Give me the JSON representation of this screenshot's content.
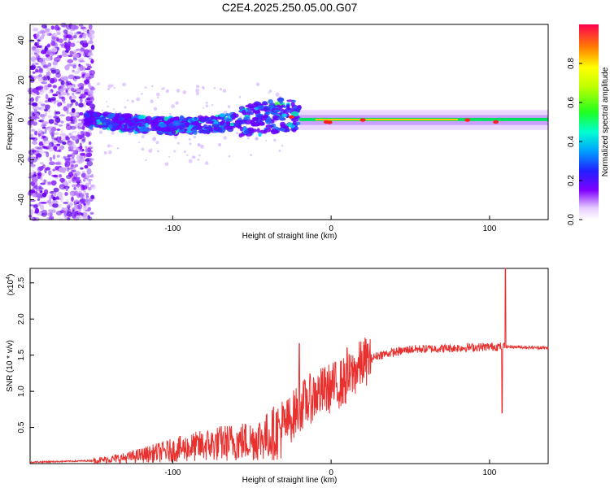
{
  "title": "C2E4.2025.250.05.00.G07",
  "chart_data": [
    {
      "type": "heatmap",
      "xlabel": "Height of straight line (km)",
      "ylabel": "Frequency (Hz)",
      "xlim": [
        -190,
        137
      ],
      "ylim": [
        -50,
        48
      ],
      "xticks": [
        -100,
        0,
        100
      ],
      "yticks": [
        -40,
        -20,
        0,
        20,
        40
      ],
      "ridge": [
        {
          "x": -150,
          "f": 0
        },
        {
          "x": -120,
          "f": -2
        },
        {
          "x": -100,
          "f": -3
        },
        {
          "x": -80,
          "f": -2
        },
        {
          "x": -60,
          "f": -1
        },
        {
          "x": -40,
          "f": 1
        },
        {
          "x": -30,
          "f": 3
        },
        {
          "x": -20,
          "f": 1
        },
        {
          "x": 0,
          "f": -1
        },
        {
          "x": 50,
          "f": 0
        },
        {
          "x": 100,
          "f": 0
        },
        {
          "x": 137,
          "f": 0
        }
      ],
      "colorbar": {
        "label": "Normalized spectral amplitude",
        "range": [
          0,
          1
        ],
        "ticks": [
          "0.0",
          "0.2",
          "0.4",
          "0.6",
          "0.8"
        ],
        "tick_values": [
          0,
          0.2,
          0.4,
          0.6,
          0.8
        ]
      }
    },
    {
      "type": "line",
      "xlabel": "Height of straight line (km)",
      "ylabel": "SNR (10 * v/v)",
      "y_multiplier": "(x10",
      "y_multiplier_exp": "4",
      "y_multiplier_close": ")",
      "xlim": [
        -190,
        137
      ],
      "ylim": [
        0,
        2.7
      ],
      "xticks": [
        -100,
        0,
        100
      ],
      "yticks": [
        "0.5",
        "1.0",
        "1.5",
        "2.0",
        "2.5"
      ],
      "ytick_values": [
        0.5,
        1.0,
        1.5,
        2.0,
        2.5
      ],
      "series_color": "#e8312f",
      "trend": [
        [
          -190,
          0.02
        ],
        [
          -150,
          0.04
        ],
        [
          -130,
          0.08
        ],
        [
          -110,
          0.15
        ],
        [
          -90,
          0.22
        ],
        [
          -70,
          0.28
        ],
        [
          -50,
          0.32
        ],
        [
          -40,
          0.38
        ],
        [
          -30,
          0.5
        ],
        [
          -20,
          0.78
        ],
        [
          -10,
          0.95
        ],
        [
          0,
          1.05
        ],
        [
          10,
          1.15
        ],
        [
          20,
          1.4
        ],
        [
          30,
          1.5
        ],
        [
          50,
          1.58
        ],
        [
          80,
          1.6
        ],
        [
          105,
          1.62
        ],
        [
          137,
          1.6
        ]
      ],
      "spikes": [
        {
          "x": -20,
          "y": 1.66
        },
        {
          "x": 10,
          "y": 1.6
        },
        {
          "x": 110,
          "y": 2.7
        },
        {
          "x": 108,
          "y": 0.7
        }
      ]
    }
  ]
}
